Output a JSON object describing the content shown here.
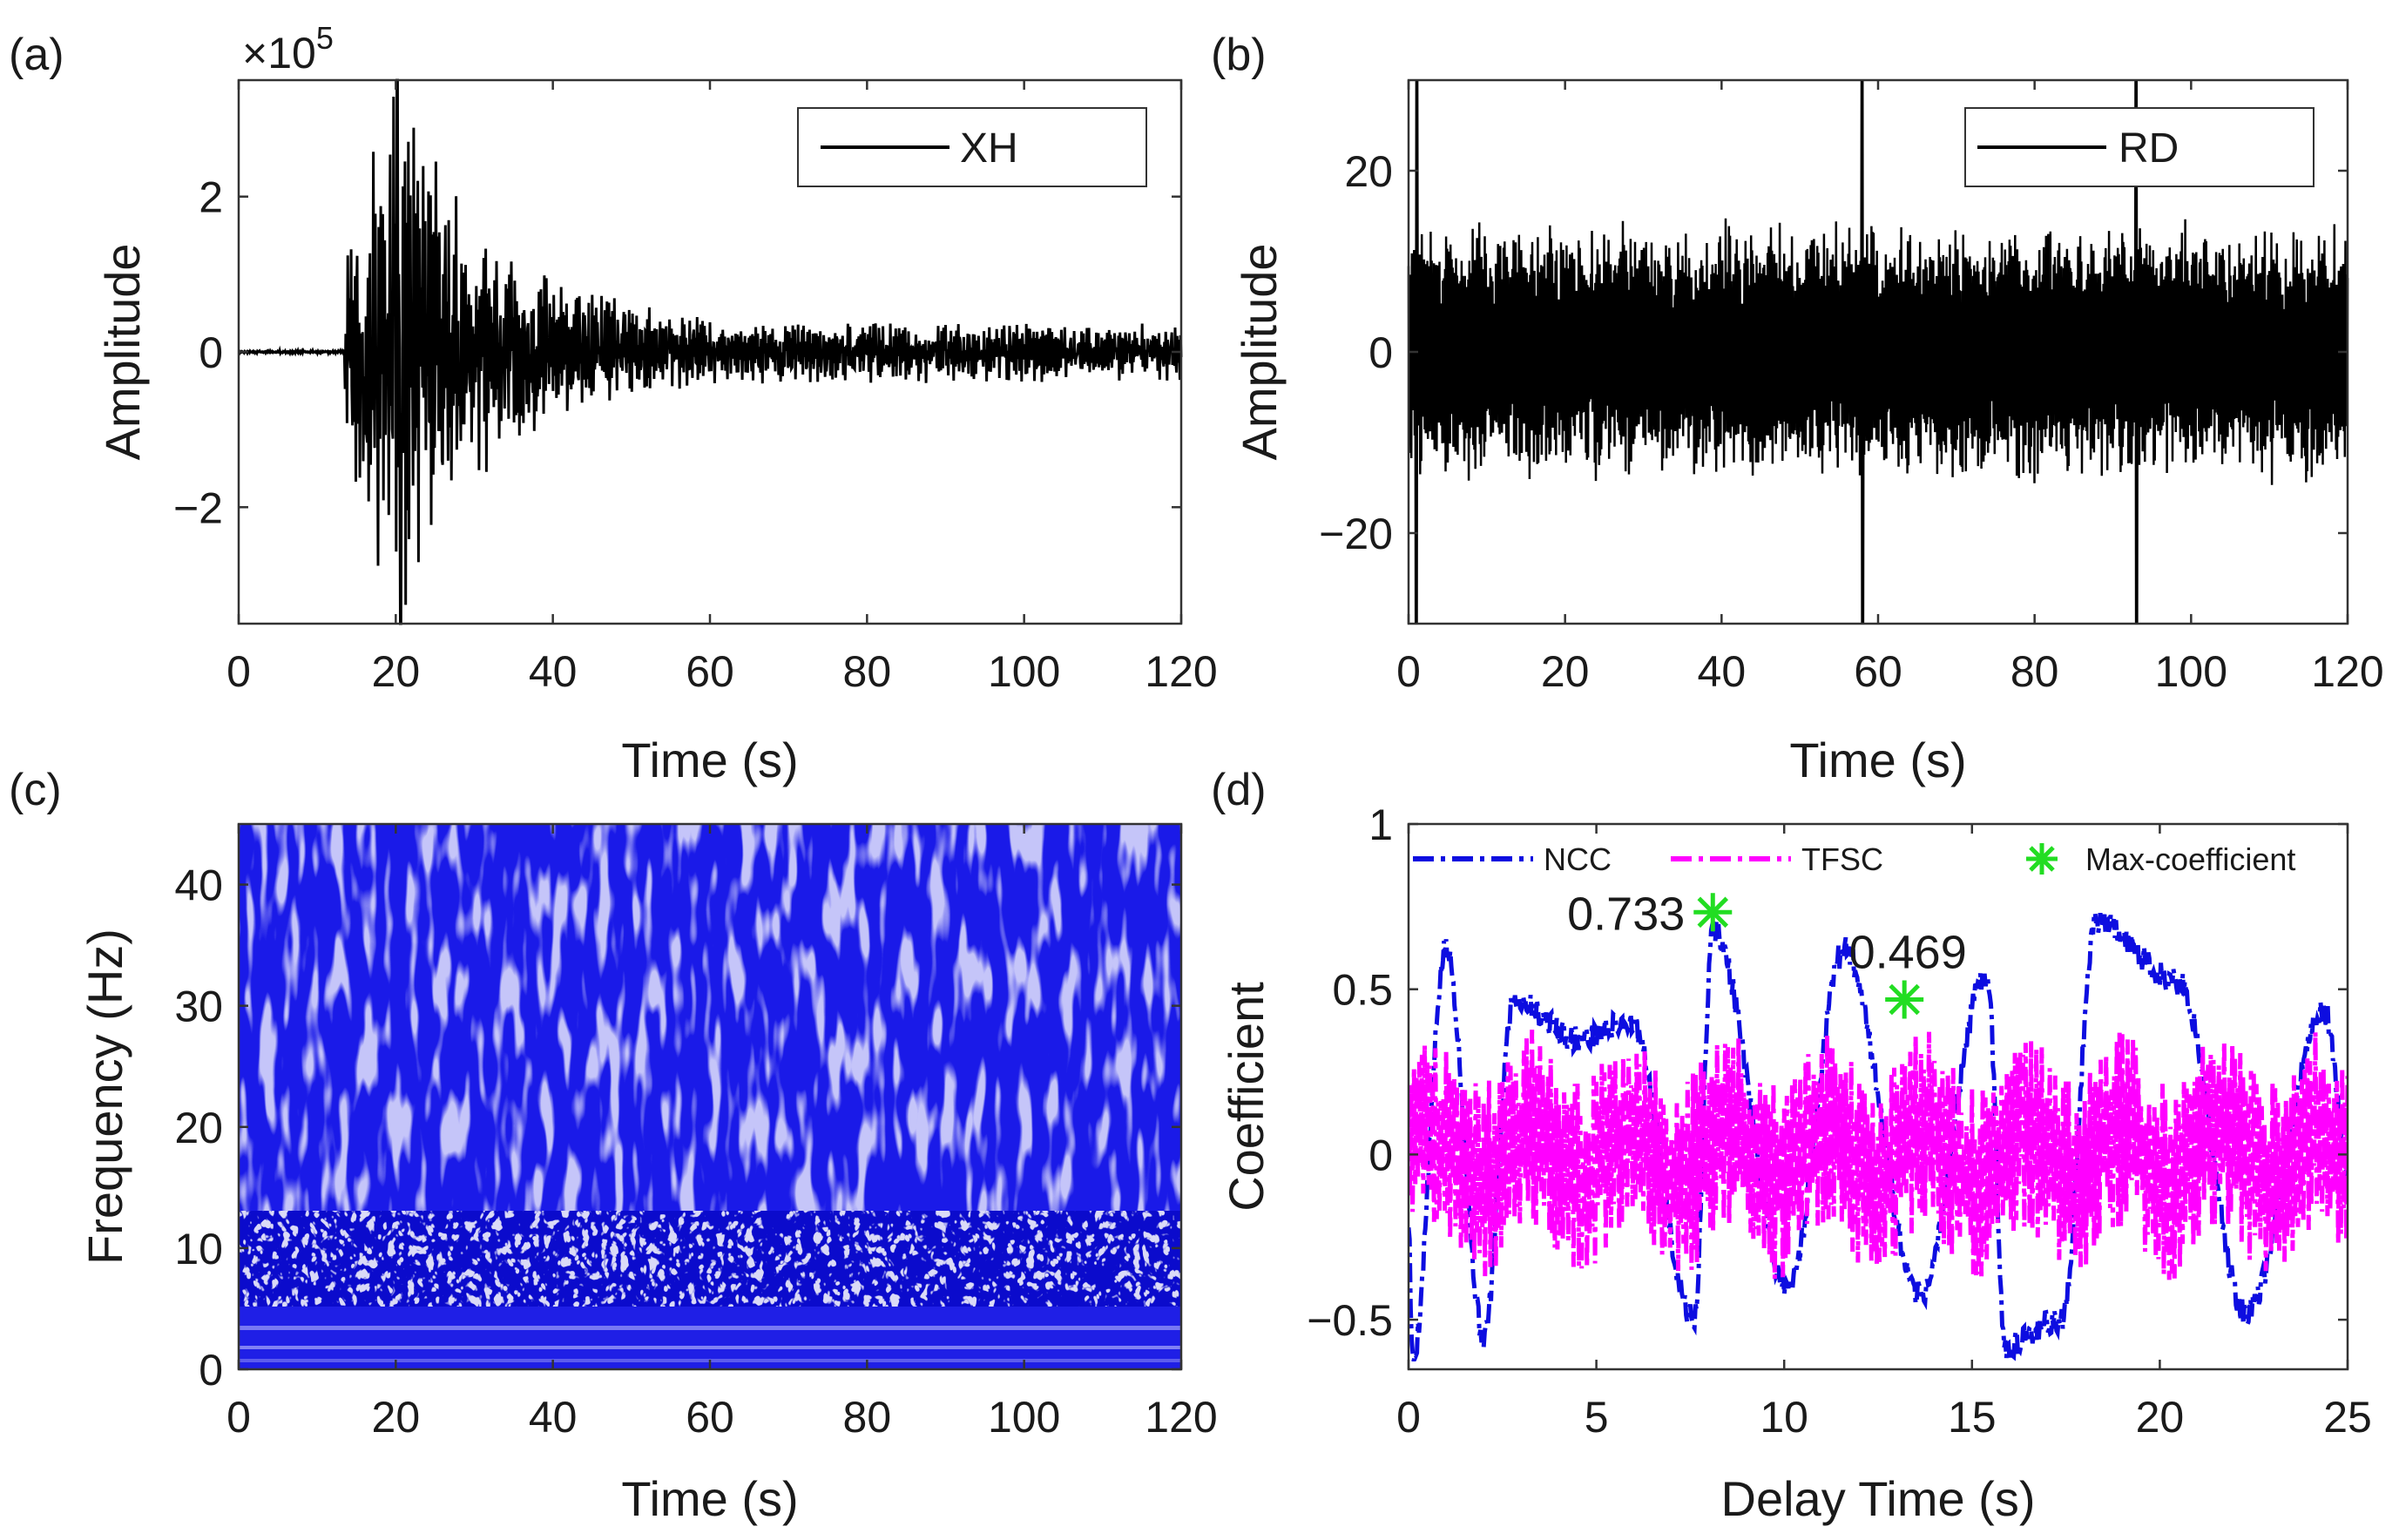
{
  "figure": {
    "panels": [
      "(a)",
      "(b)",
      "(c)",
      "(d)"
    ]
  },
  "chart_data": [
    {
      "panel": "(a)",
      "type": "line",
      "title": "",
      "xlabel": "Time (s)",
      "ylabel": "Amplitude",
      "scale_label": "×10",
      "scale_exponent": "5",
      "xlim": [
        0,
        120
      ],
      "ylim": [
        -3.5,
        3.5
      ],
      "xticks": [
        0,
        20,
        40,
        60,
        80,
        100,
        120
      ],
      "xtick_labels": [
        "0",
        "20",
        "40",
        "60",
        "80",
        "100",
        "120"
      ],
      "yticks": [
        -2,
        0,
        2
      ],
      "ytick_labels": [
        "−2",
        "0",
        "2"
      ],
      "legend": [
        "XH"
      ],
      "legend_position": "top-right",
      "series": [
        {
          "name": "XH",
          "color": "#000000",
          "description": "seismic record: flat near 0 until ~13 s onset, peak envelope ~3.5e5 near 20 s, decaying coda to ~0.4e5 at 120 s",
          "envelope": {
            "onset": 13.5,
            "peak_t": 20,
            "peak": 3.5,
            "tail": 0.4,
            "noise_before": 0.02
          }
        }
      ]
    },
    {
      "panel": "(b)",
      "type": "line",
      "title": "",
      "xlabel": "Time (s)",
      "ylabel": "Amplitude",
      "xlim": [
        0,
        120
      ],
      "ylim": [
        -30,
        30
      ],
      "xticks": [
        0,
        20,
        40,
        60,
        80,
        100,
        120
      ],
      "xtick_labels": [
        "0",
        "20",
        "40",
        "60",
        "80",
        "100",
        "120"
      ],
      "yticks": [
        -20,
        0,
        20
      ],
      "ytick_labels": [
        "−20",
        "0",
        "20"
      ],
      "legend": [
        "RD"
      ],
      "legend_position": "top-right",
      "series": [
        {
          "name": "RD",
          "color": "#000000",
          "description": "noisy signal, amplitude roughly ±20 throughout, spikes to ±30 near 1 s, 58 s and 93 s",
          "envelope": {
            "base": 15,
            "spike_times": [
              1,
              58,
              93
            ],
            "spike_amp": 30
          }
        }
      ]
    },
    {
      "panel": "(c)",
      "type": "heatmap",
      "title": "",
      "xlabel": "Time (s)",
      "ylabel": "Frequency (Hz)",
      "xlim": [
        0,
        120
      ],
      "ylim": [
        0,
        45
      ],
      "xticks": [
        0,
        20,
        40,
        60,
        80,
        100,
        120
      ],
      "xtick_labels": [
        "0",
        "20",
        "40",
        "60",
        "80",
        "100",
        "120"
      ],
      "yticks": [
        0,
        10,
        20,
        30,
        40
      ],
      "ytick_labels": [
        "0",
        "10",
        "20",
        "30",
        "40"
      ],
      "colormap": [
        "#1414e6",
        "#ffffff"
      ],
      "description": "time-frequency spectrum dominated by blue; dense white speckle 5-15 Hz, streaky vertical texture above 15 Hz, bands below 5 Hz"
    },
    {
      "panel": "(d)",
      "type": "line",
      "title": "",
      "xlabel": "Delay Time (s)",
      "ylabel": "Coefficient",
      "xlim": [
        0,
        25
      ],
      "ylim": [
        -0.65,
        1.0
      ],
      "xticks": [
        0,
        5,
        10,
        15,
        20,
        25
      ],
      "xtick_labels": [
        "0",
        "5",
        "10",
        "15",
        "20",
        "25"
      ],
      "yticks": [
        -0.5,
        0,
        0.5,
        1
      ],
      "ytick_labels": [
        "−0.5",
        "0",
        "0.5",
        "1"
      ],
      "legend": [
        "NCC",
        "TFSC",
        "Max-coefficient"
      ],
      "legend_position": "top",
      "series": [
        {
          "name": "NCC",
          "color": "#0d0de0",
          "style": "dash-dot",
          "peaks": [
            [
              1.0,
              0.62
            ],
            [
              2.8,
              0.47
            ],
            [
              4.5,
              0.35
            ],
            [
              5.9,
              0.4
            ],
            [
              8.1,
              0.68
            ],
            [
              11.6,
              0.62
            ],
            [
              15.4,
              0.55
            ],
            [
              18.3,
              0.71
            ],
            [
              20.5,
              0.52
            ],
            [
              24.4,
              0.43
            ]
          ],
          "troughs": [
            [
              0.1,
              -0.62
            ],
            [
              2.0,
              -0.55
            ],
            [
              7.6,
              -0.5
            ],
            [
              10.1,
              -0.4
            ],
            [
              13.6,
              -0.43
            ],
            [
              15.9,
              -0.58
            ],
            [
              17.4,
              -0.5
            ],
            [
              22.3,
              -0.48
            ]
          ]
        },
        {
          "name": "TFSC",
          "color": "#ff00ff",
          "style": "dash-dot",
          "range": [
            -0.4,
            0.45
          ]
        },
        {
          "name": "Max-coefficient",
          "color": "#22dd22",
          "style": "asterisk",
          "points": [
            {
              "x": 8.1,
              "y": 0.733,
              "label": "0.733"
            },
            {
              "x": 13.2,
              "y": 0.469,
              "label": "0.469"
            }
          ]
        }
      ]
    }
  ]
}
